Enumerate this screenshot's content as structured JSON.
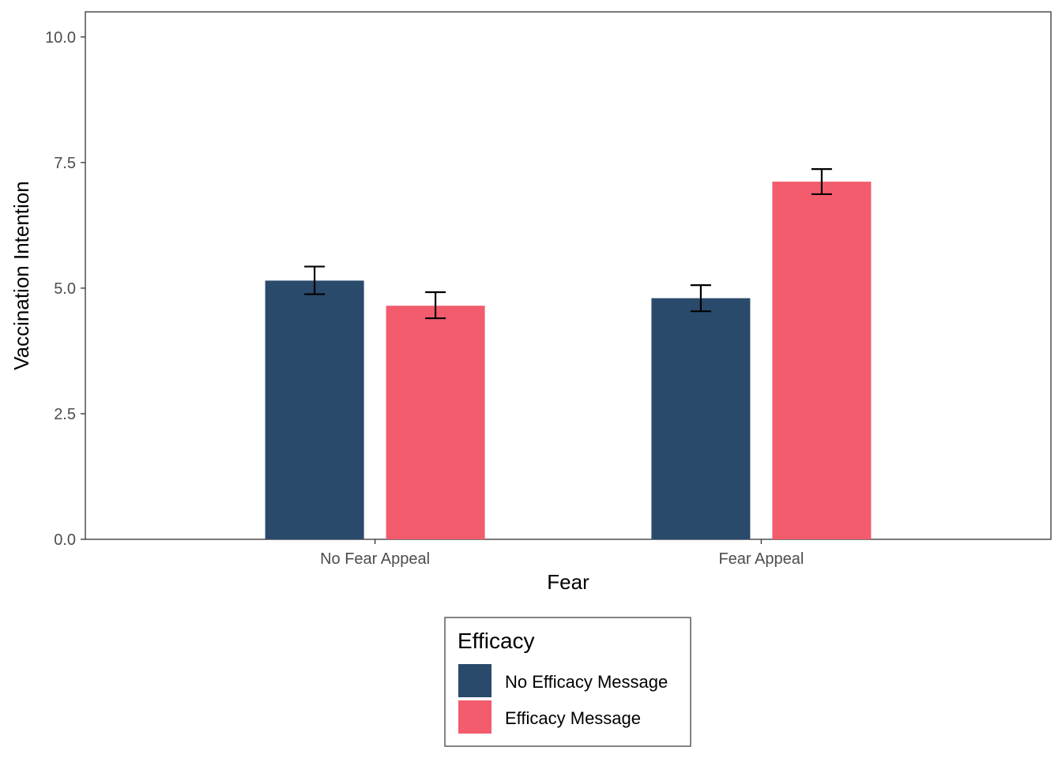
{
  "chart_data": {
    "type": "bar",
    "xlabel": "Fear",
    "ylabel": "Vaccination Intention",
    "ylim": [
      0,
      10.5
    ],
    "yticks": [
      "0.0",
      "2.5",
      "5.0",
      "7.5",
      "10.0"
    ],
    "ytick_values": [
      0,
      2.5,
      5,
      7.5,
      10
    ],
    "categories": [
      "No Fear Appeal",
      "Fear Appeal"
    ],
    "series": [
      {
        "name": "No Efficacy Message",
        "color": "#2a4a6b",
        "values": [
          5.15,
          4.8
        ],
        "error_low": [
          4.88,
          4.54
        ],
        "error_high": [
          5.43,
          5.06
        ]
      },
      {
        "name": "Efficacy Message",
        "color": "#f25c6d",
        "values": [
          4.65,
          7.12
        ],
        "error_low": [
          4.4,
          6.87
        ],
        "error_high": [
          4.92,
          7.37
        ]
      }
    ],
    "grid": false,
    "legend": {
      "title": "Efficacy",
      "position": "bottom"
    }
  }
}
